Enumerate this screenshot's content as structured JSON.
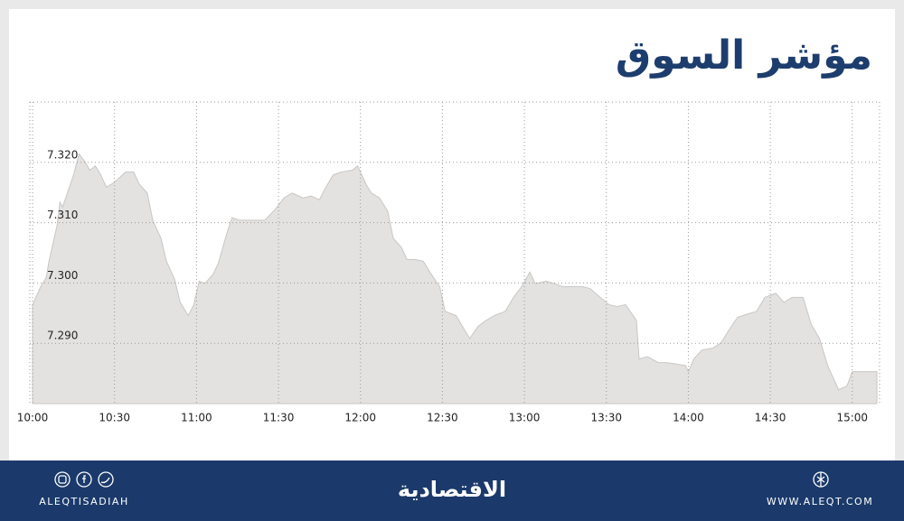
{
  "chart_data": {
    "type": "area",
    "title": "مؤشر السوق",
    "color": "#e4e2e0",
    "line_color": "#c9c7c5",
    "grid": true,
    "x": [
      600,
      603,
      605,
      606,
      609,
      610,
      611,
      615,
      617,
      619,
      621,
      623,
      625,
      627,
      629,
      631,
      634,
      637,
      639,
      642,
      644,
      647,
      649,
      652,
      654,
      657,
      659,
      661,
      663,
      666,
      668,
      671,
      673,
      676,
      679,
      682,
      685,
      689,
      692,
      695,
      699,
      702,
      705,
      707,
      710,
      713,
      717,
      719,
      722,
      724,
      727,
      730,
      732,
      735,
      737,
      740,
      743,
      746,
      749,
      751,
      755,
      758,
      760,
      763,
      766,
      769,
      773,
      776,
      779,
      782,
      784,
      788,
      791,
      794,
      797,
      801,
      804,
      807,
      811,
      814,
      817,
      821,
      822,
      825,
      829,
      832,
      835,
      839,
      840,
      842,
      845,
      849,
      852,
      855,
      858,
      862,
      865,
      868,
      872,
      875,
      878,
      882,
      885,
      888,
      891,
      895,
      898,
      900,
      909
    ],
    "series": [
      {
        "name": "مؤشر السوق",
        "values": [
          7.2964,
          7.2994,
          7.3009,
          7.3036,
          7.3096,
          7.3134,
          7.3126,
          7.3179,
          7.3214,
          7.3202,
          7.3187,
          7.3194,
          7.3179,
          7.3159,
          7.3164,
          7.3171,
          7.3184,
          7.3184,
          7.3164,
          7.3149,
          7.3104,
          7.3074,
          7.3036,
          7.3006,
          7.2968,
          7.2946,
          7.2964,
          7.3003,
          7.2999,
          7.3014,
          7.3033,
          7.3081,
          7.3108,
          7.3104,
          7.3104,
          7.3104,
          7.3104,
          7.3123,
          7.3141,
          7.3149,
          7.3141,
          7.3144,
          7.3138,
          7.3156,
          7.3179,
          7.3184,
          7.3187,
          7.3194,
          7.3164,
          7.3149,
          7.3141,
          7.3119,
          7.3074,
          7.3059,
          7.3039,
          7.3039,
          7.3036,
          7.3014,
          7.2994,
          7.2953,
          7.2946,
          7.2923,
          7.2908,
          7.2928,
          7.2938,
          7.2946,
          7.2953,
          7.2976,
          7.2994,
          7.3018,
          7.2999,
          7.3003,
          7.2999,
          7.2994,
          7.2994,
          7.2994,
          7.2991,
          7.2979,
          7.2964,
          7.2961,
          7.2964,
          7.2938,
          7.2874,
          7.2878,
          7.2868,
          7.2868,
          7.2866,
          7.2863,
          7.2853,
          7.2874,
          7.2889,
          7.2892,
          7.2901,
          7.2923,
          7.2943,
          7.2949,
          7.2953,
          7.2976,
          7.2983,
          7.2968,
          7.2976,
          7.2976,
          7.2931,
          7.2908,
          7.2863,
          7.2823,
          7.2829,
          7.2853,
          7.2853
        ]
      }
    ],
    "xlim": [
      599,
      910
    ],
    "xticks": [
      {
        "value": 600,
        "label": "10:00"
      },
      {
        "value": 630,
        "label": "10:30"
      },
      {
        "value": 660,
        "label": "11:00"
      },
      {
        "value": 690,
        "label": "11:30"
      },
      {
        "value": 720,
        "label": "12:00"
      },
      {
        "value": 750,
        "label": "12:30"
      },
      {
        "value": 780,
        "label": "13:00"
      },
      {
        "value": 810,
        "label": "13:30"
      },
      {
        "value": 840,
        "label": "14:00"
      },
      {
        "value": 870,
        "label": "14:30"
      },
      {
        "value": 900,
        "label": "15:00"
      }
    ],
    "ylim": [
      7.28,
      7.33
    ],
    "yticks": [
      {
        "value": 7.29,
        "label": "7.290"
      },
      {
        "value": 7.3,
        "label": "7.300"
      },
      {
        "value": 7.31,
        "label": "7.310"
      },
      {
        "value": 7.32,
        "label": "7.320"
      }
    ]
  },
  "footer": {
    "left": "ALEQTISADIAH",
    "logo": "الاقتصادية",
    "right": "WWW.ALEQT.COM"
  }
}
